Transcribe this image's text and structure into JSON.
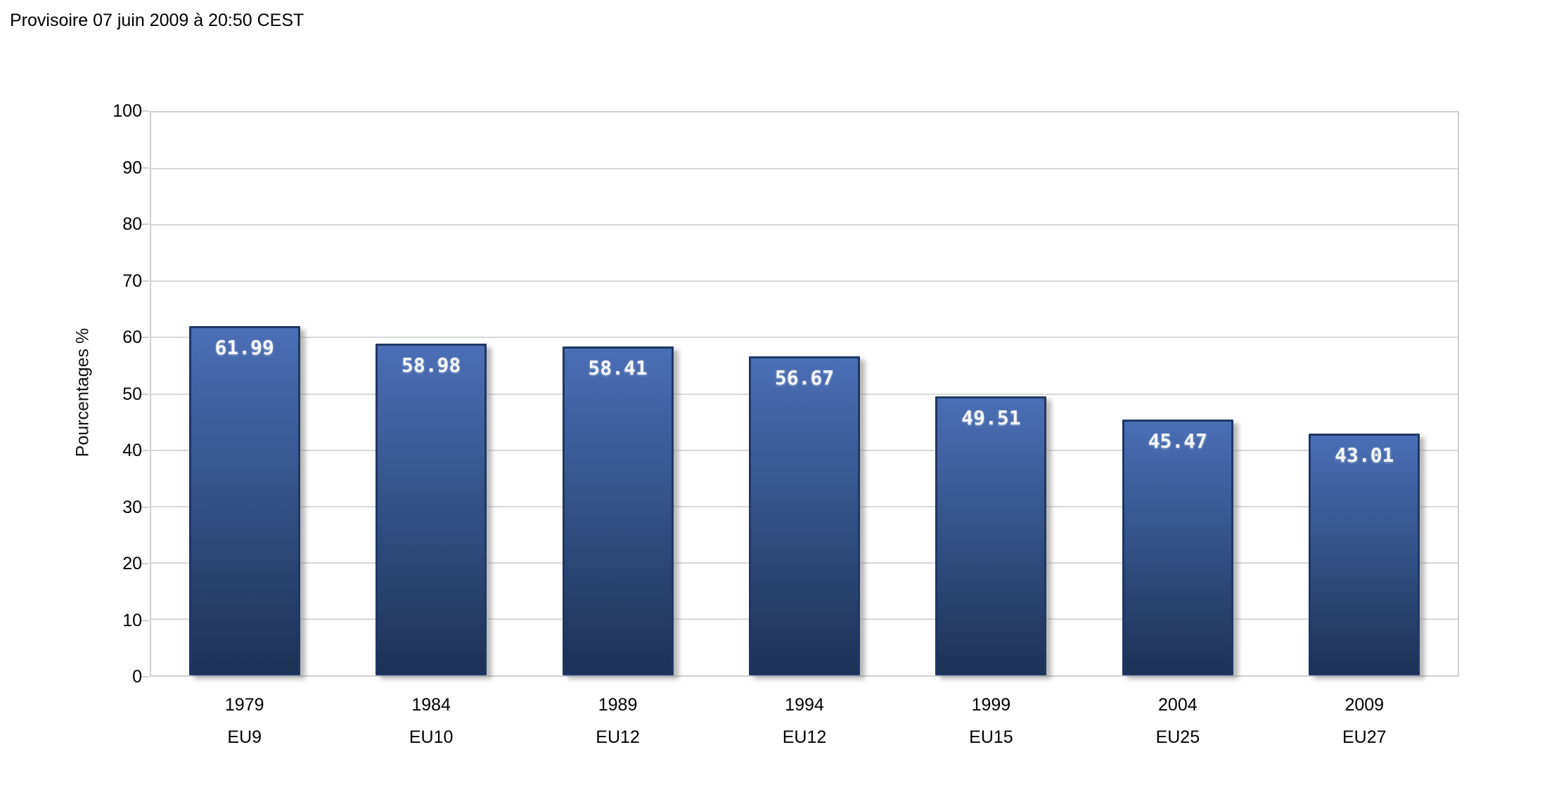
{
  "header": {
    "title": "Provisoire 07 juin 2009 à 20:50 CEST"
  },
  "chart_data": {
    "type": "bar",
    "title": "Provisoire 07 juin 2009 à 20:50 CEST",
    "xlabel": "",
    "ylabel": "Pourcentages %",
    "ylim": [
      0,
      100
    ],
    "ytick_step": 10,
    "grid": true,
    "legend": "none",
    "categories": [
      {
        "year": "1979",
        "group": "EU9"
      },
      {
        "year": "1984",
        "group": "EU10"
      },
      {
        "year": "1989",
        "group": "EU12"
      },
      {
        "year": "1994",
        "group": "EU12"
      },
      {
        "year": "1999",
        "group": "EU15"
      },
      {
        "year": "2004",
        "group": "EU25"
      },
      {
        "year": "2009",
        "group": "EU27"
      }
    ],
    "values": [
      61.99,
      58.98,
      58.41,
      56.67,
      49.51,
      45.47,
      43.01
    ],
    "value_labels": [
      "61.99",
      "58.98",
      "58.41",
      "56.67",
      "49.51",
      "45.47",
      "43.01"
    ],
    "colors": {
      "bar_gradient_top": "#4a6fb5",
      "bar_gradient_bottom": "#1e3156",
      "bar_border": "#1f3765",
      "bar_value_text": "#f5f7fd",
      "gridline": "#d8d8d8",
      "plot_border": "#cfcfcf",
      "tick_mark": "#cfcfcf",
      "text": "#000000",
      "background": "#ffffff"
    }
  }
}
